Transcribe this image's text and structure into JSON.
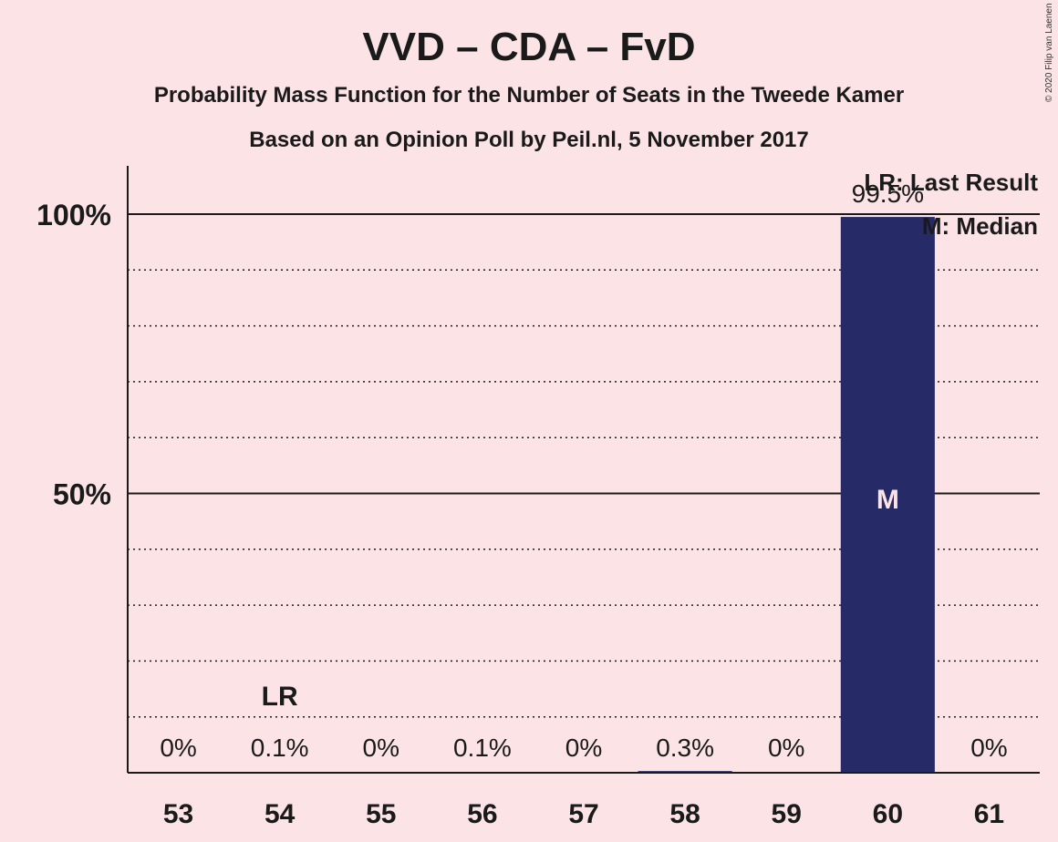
{
  "chart_data": {
    "type": "bar",
    "title": "VVD – CDA – FvD",
    "subtitle": "Probability Mass Function for the Number of Seats in the Tweede Kamer",
    "subtitle2": "Based on an Opinion Poll by Peil.nl, 5 November 2017",
    "copyright": "© 2020 Filip van Laenen",
    "categories": [
      "53",
      "54",
      "55",
      "56",
      "57",
      "58",
      "59",
      "60",
      "61"
    ],
    "values": [
      0,
      0.1,
      0,
      0.1,
      0,
      0.3,
      0,
      99.5,
      0
    ],
    "value_labels": [
      "0%",
      "0.1%",
      "0%",
      "0.1%",
      "0%",
      "0.3%",
      "0%",
      "99.5%",
      "0%"
    ],
    "y_ticks": [
      {
        "value": 50,
        "label": "50%"
      },
      {
        "value": 100,
        "label": "100%"
      }
    ],
    "ylim": [
      0,
      100
    ],
    "grid_step": 10,
    "last_result": {
      "category": "54",
      "label": "LR"
    },
    "median": {
      "category": "60",
      "label": "M"
    },
    "legend": [
      "LR: Last Result",
      "M: Median"
    ],
    "legend_position": "top-right",
    "bar_color": "#262a66"
  }
}
